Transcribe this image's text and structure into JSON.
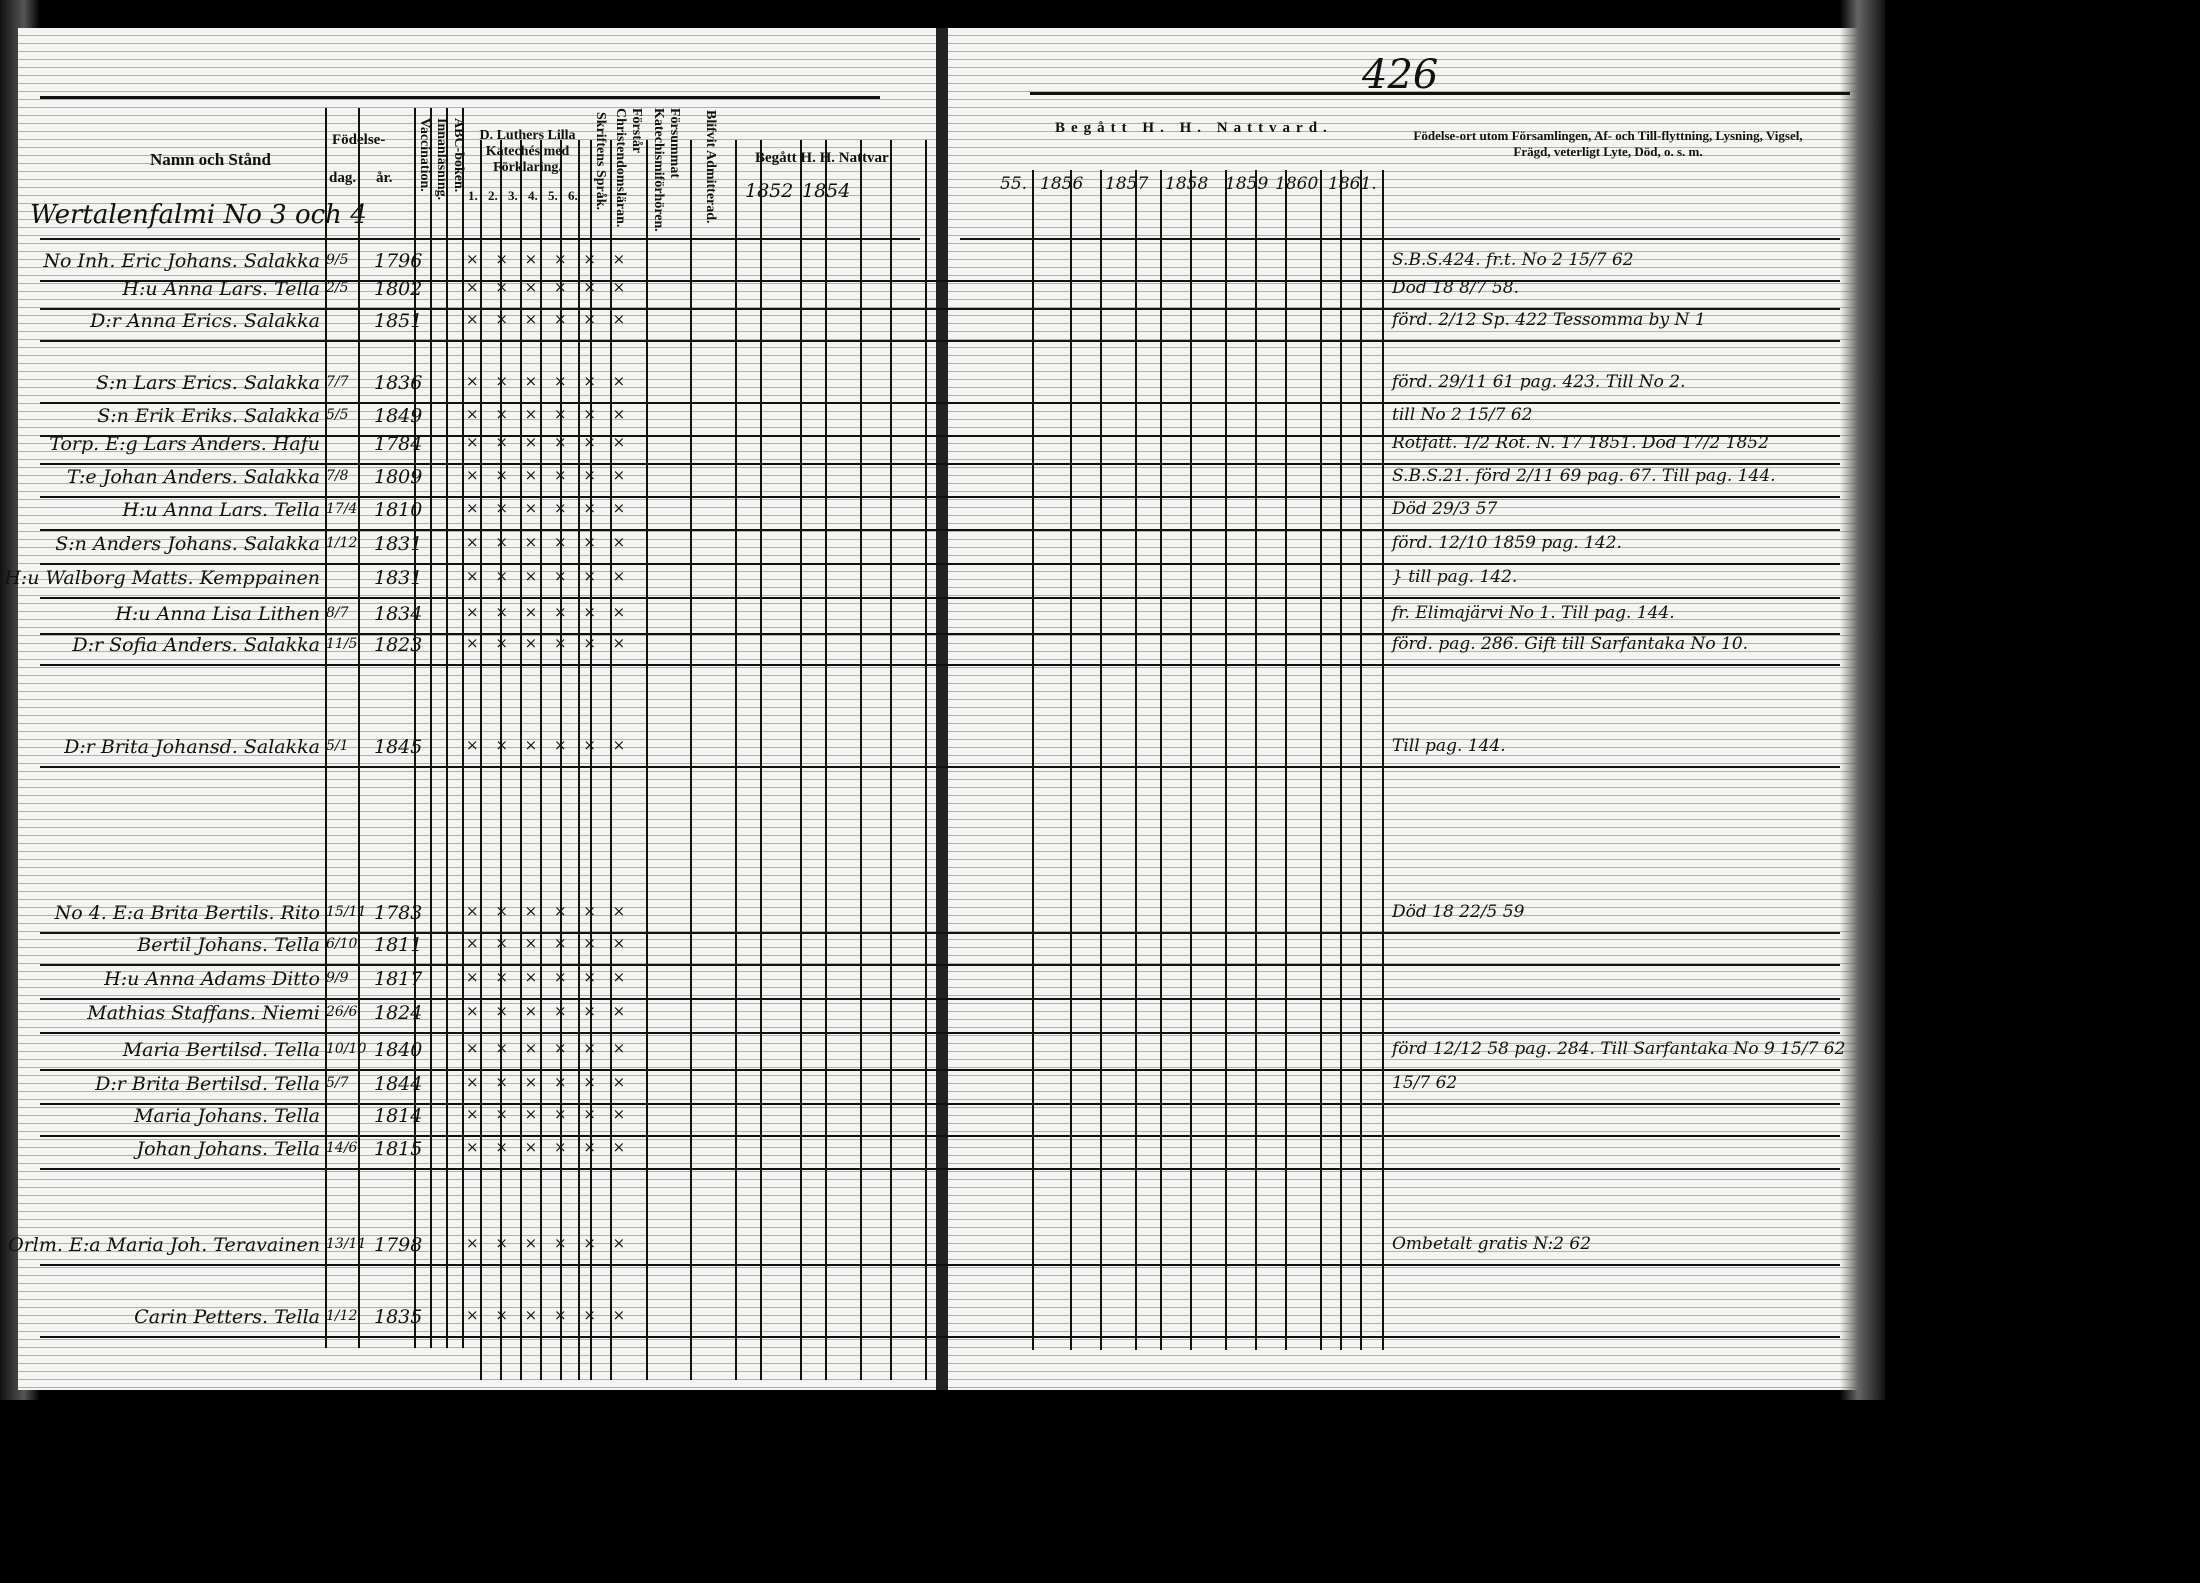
{
  "page_number": "426",
  "left_header": {
    "name_col": "Namn och Stånd",
    "birth": "Födelse-",
    "day": "dag.",
    "year": "år.",
    "vaccination": "Vaccination.",
    "reading": "Innanläsning.",
    "abc": "ABC-boken.",
    "catechism": "D. Luthers Lilla Katechés med Förklaring.",
    "catechism_parts": [
      "1.",
      "2.",
      "3.",
      "4.",
      "5.",
      "6."
    ],
    "scripture": "Skriftens Språk.",
    "understanding": "Förstår Christendomsläran.",
    "missed": "Försummat Katechismiförhören.",
    "admitted": "Blifvit Admitterad.",
    "communion": "Begått H. H. Nattvar",
    "years": [
      "1852",
      "1854"
    ]
  },
  "right_header": {
    "communion": "Begått H. H. Nattvard.",
    "years": [
      "55.",
      "1856",
      "1857",
      "1858",
      "1859",
      "1860",
      "1861."
    ],
    "remarks": "Födelse-ort utom Församlingen, Af- och Till-flyttning, Lysning, Vigsel, Frägd, veterligt Lyte, Död, o. s. m."
  },
  "village": "Wertalenfalmi No 3 och 4",
  "rows": [
    {
      "name": "No Inh. Eric Johans. Salakka",
      "day": "9/5",
      "year": "1796",
      "remark": "S.B.S.424. fr.t. No 2 15/7 62"
    },
    {
      "name": "H:u Anna Lars. Tella",
      "day": "2/5",
      "year": "1802",
      "remark": "Död 18 8/7 58."
    },
    {
      "name": "D:r Anna Erics. Salakka",
      "day": "",
      "year": "1851",
      "remark": "förd. 2/12 Sp. 422 Tessomma by N 1"
    },
    {
      "name": "S:n Lars Erics. Salakka",
      "day": "7/7",
      "year": "1836",
      "remark": "förd. 29/11 61 pag. 423. Till No 2."
    },
    {
      "name": "S:n Erik Eriks. Salakka",
      "day": "5/5",
      "year": "1849",
      "remark": "till No 2 15/7 62"
    },
    {
      "name": "Torp. E:g Lars Anders. Hafu",
      "day": "",
      "year": "1784",
      "remark": "Rotfatt. 1/2 Rot. N. 17 1851. Död 17/2 1852"
    },
    {
      "name": "T:e Johan Anders. Salakka",
      "day": "7/8",
      "year": "1809",
      "remark": "S.B.S.21. förd 2/11 69 pag. 67. Till pag. 144."
    },
    {
      "name": "H:u Anna Lars. Tella",
      "day": "17/4",
      "year": "1810",
      "remark": "Död 29/3 57"
    },
    {
      "name": "S:n Anders Johans. Salakka",
      "day": "1/12",
      "year": "1831",
      "remark": "förd. 12/10 1859 pag. 142."
    },
    {
      "name": "H:u Walborg Matts. Kemppainen",
      "day": "",
      "year": "1831",
      "remark": "} till pag. 142."
    },
    {
      "name": "H:u Anna Lisa Lithen",
      "day": "8/7",
      "year": "1834",
      "remark": "fr. Elimajärvi No 1. Till pag. 144."
    },
    {
      "name": "D:r Sofia Anders. Salakka",
      "day": "11/5",
      "year": "1823",
      "remark": "förd. pag. 286. Gift till Sarfantaka No 10."
    },
    {
      "name": "D:r Brita Johansd. Salakka",
      "day": "5/1",
      "year": "1845",
      "remark": "Till pag. 144."
    },
    {
      "name": "No 4. E:a Brita Bertils. Rito",
      "day": "15/11",
      "year": "1783",
      "remark": "Död 18 22/5 59"
    },
    {
      "name": "Bertil Johans. Tella",
      "day": "6/10",
      "year": "1811",
      "remark": ""
    },
    {
      "name": "H:u Anna Adams Ditto",
      "day": "9/9",
      "year": "1817",
      "remark": ""
    },
    {
      "name": "Mathias Staffans. Niemi",
      "day": "26/6",
      "year": "1824",
      "remark": ""
    },
    {
      "name": "Maria Bertilsd. Tella",
      "day": "10/10",
      "year": "1840",
      "remark": "förd 12/12 58 pag. 284. Till Sarfantaka No 9 15/7 62"
    },
    {
      "name": "D:r Brita Bertilsd. Tella",
      "day": "5/7",
      "year": "1844",
      "remark": "15/7 62"
    },
    {
      "name": "Maria Johans. Tella",
      "day": "",
      "year": "1814",
      "remark": ""
    },
    {
      "name": "Johan Johans. Tella",
      "day": "14/6",
      "year": "1815",
      "remark": ""
    },
    {
      "name": "Orlm. E:a Maria Joh. Teravainen",
      "day": "13/11",
      "year": "1798",
      "remark": "Ombetalt gratis N:2 62"
    },
    {
      "name": "Carin Petters. Tella",
      "day": "1/12",
      "year": "1835",
      "remark": ""
    }
  ],
  "colors": {
    "paper": "#f4f4f2",
    "ink": "#111111",
    "background": "#000000"
  }
}
